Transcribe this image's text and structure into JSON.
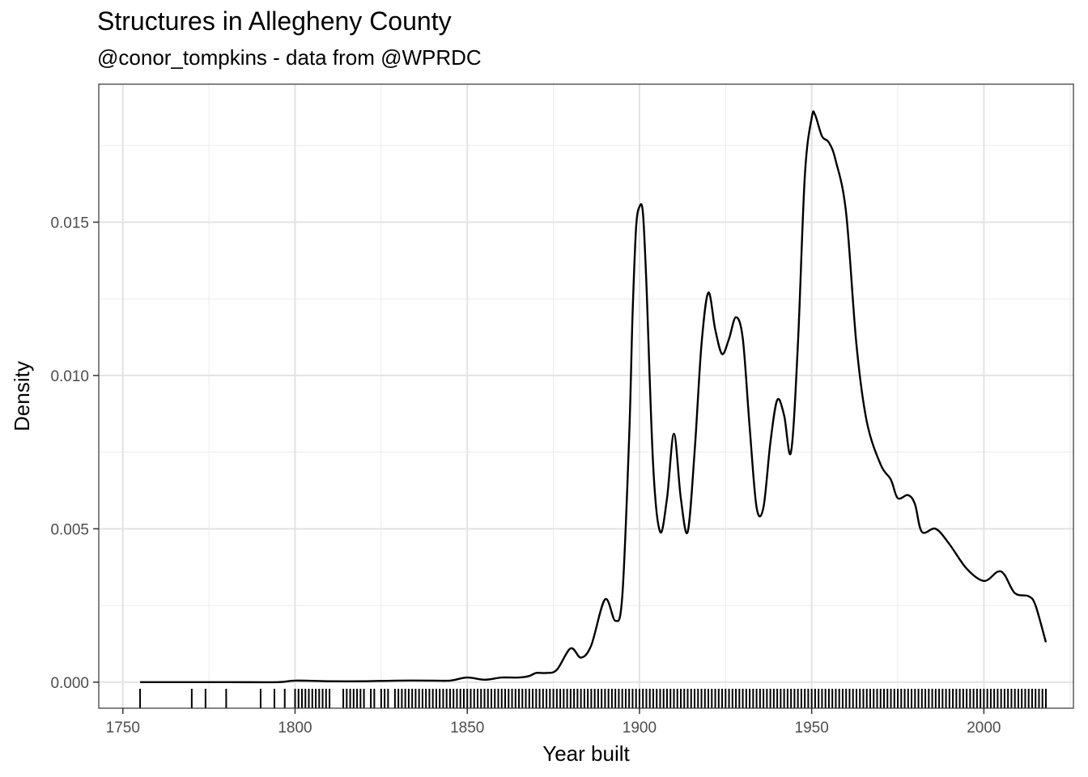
{
  "chart_data": {
    "type": "line",
    "title": "Structures in Allegheny County",
    "subtitle": "@conor_tompkins - data from @WPRDC",
    "xlabel": "Year built",
    "ylabel": "Density",
    "xlim": [
      1743,
      2026
    ],
    "ylim": [
      -0.00085,
      0.0195
    ],
    "x_ticks": [
      1750,
      1800,
      1850,
      1900,
      1950,
      2000
    ],
    "x_tick_labels": [
      "1750",
      "1800",
      "1850",
      "1900",
      "1950",
      "2000"
    ],
    "y_ticks": [
      0,
      0.005,
      0.01,
      0.015
    ],
    "y_tick_labels": [
      "0.000",
      "0.005",
      "0.010",
      "0.015"
    ],
    "grid": true,
    "series": [
      {
        "x": [
          1755,
          1780,
          1795,
          1800,
          1810,
          1820,
          1830,
          1840,
          1845,
          1850,
          1855,
          1860,
          1865,
          1868,
          1870,
          1873,
          1876,
          1880,
          1883,
          1886,
          1890,
          1893,
          1895,
          1897,
          1898,
          1899,
          1900,
          1901,
          1902,
          1904,
          1906,
          1908,
          1910,
          1912,
          1914,
          1916,
          1918,
          1920,
          1922,
          1924,
          1926,
          1928,
          1930,
          1932,
          1934,
          1936,
          1938,
          1940,
          1942,
          1944,
          1946,
          1948,
          1950,
          1951,
          1953,
          1955,
          1957,
          1960,
          1963,
          1966,
          1970,
          1973,
          1975,
          1978,
          1980,
          1982,
          1986,
          1990,
          1995,
          2000,
          2004,
          2006,
          2009,
          2013,
          2015,
          2018
        ],
        "y": [
          0,
          0,
          0,
          5e-05,
          3e-05,
          3e-05,
          5e-05,
          5e-05,
          5e-05,
          0.00015,
          8e-05,
          0.00015,
          0.00015,
          0.0002,
          0.0003,
          0.0003,
          0.0004,
          0.0011,
          0.0008,
          0.0012,
          0.0027,
          0.002,
          0.0028,
          0.008,
          0.012,
          0.0148,
          0.0155,
          0.0153,
          0.013,
          0.007,
          0.0049,
          0.006,
          0.0081,
          0.006,
          0.0049,
          0.0075,
          0.011,
          0.0127,
          0.0115,
          0.0107,
          0.0112,
          0.0119,
          0.0112,
          0.0083,
          0.0057,
          0.0057,
          0.0078,
          0.0092,
          0.0087,
          0.0075,
          0.011,
          0.0165,
          0.0184,
          0.0185,
          0.0178,
          0.0176,
          0.017,
          0.0153,
          0.011,
          0.0085,
          0.0071,
          0.0066,
          0.006,
          0.0061,
          0.0058,
          0.0049,
          0.005,
          0.0045,
          0.0037,
          0.0033,
          0.0036,
          0.0035,
          0.0029,
          0.0028,
          0.0025,
          0.0013
        ]
      }
    ],
    "rug_years": [
      1755,
      1770,
      1774,
      1780,
      1790,
      1794,
      1797,
      1800,
      1801,
      1802,
      1803,
      1804,
      1805,
      1806,
      1807,
      1808,
      1809,
      1810,
      1814,
      1815,
      1816,
      1817,
      1818,
      1819,
      1820,
      1822,
      1823,
      1825,
      1826,
      1827,
      1829,
      1830,
      1831,
      1832,
      1833,
      1834,
      1835,
      1836,
      1837,
      1838,
      1839,
      1840,
      1841,
      1842,
      1843,
      1844,
      1845,
      1846,
      1847,
      1848,
      1849,
      1850,
      1851,
      1852,
      1853,
      1854,
      1855,
      1856,
      1857,
      1858,
      1859,
      1860,
      1861,
      1862,
      1863,
      1864,
      1865,
      1866,
      1867,
      1868,
      1869,
      1870,
      1871,
      1872,
      1873,
      1874,
      1875,
      1876,
      1877,
      1878,
      1879,
      1880,
      1881,
      1882,
      1883,
      1884,
      1885,
      1886,
      1887,
      1888,
      1889,
      1890,
      1891,
      1892,
      1893,
      1894,
      1895,
      1896,
      1897,
      1898,
      1899,
      1900,
      1901,
      1902,
      1903,
      1904,
      1905,
      1906,
      1907,
      1908,
      1909,
      1910,
      1911,
      1912,
      1913,
      1914,
      1915,
      1916,
      1917,
      1918,
      1919,
      1920,
      1921,
      1922,
      1923,
      1924,
      1925,
      1926,
      1927,
      1928,
      1929,
      1930,
      1931,
      1932,
      1933,
      1934,
      1935,
      1936,
      1937,
      1938,
      1939,
      1940,
      1941,
      1942,
      1943,
      1944,
      1945,
      1946,
      1947,
      1948,
      1949,
      1950,
      1951,
      1952,
      1953,
      1954,
      1955,
      1956,
      1957,
      1958,
      1959,
      1960,
      1961,
      1962,
      1963,
      1964,
      1965,
      1966,
      1967,
      1968,
      1969,
      1970,
      1971,
      1972,
      1973,
      1974,
      1975,
      1976,
      1977,
      1978,
      1979,
      1980,
      1981,
      1982,
      1983,
      1984,
      1985,
      1986,
      1987,
      1988,
      1989,
      1990,
      1991,
      1992,
      1993,
      1994,
      1995,
      1996,
      1997,
      1998,
      1999,
      2000,
      2001,
      2002,
      2003,
      2004,
      2005,
      2006,
      2007,
      2008,
      2009,
      2010,
      2011,
      2012,
      2013,
      2014,
      2015,
      2016,
      2017,
      2018
    ]
  }
}
